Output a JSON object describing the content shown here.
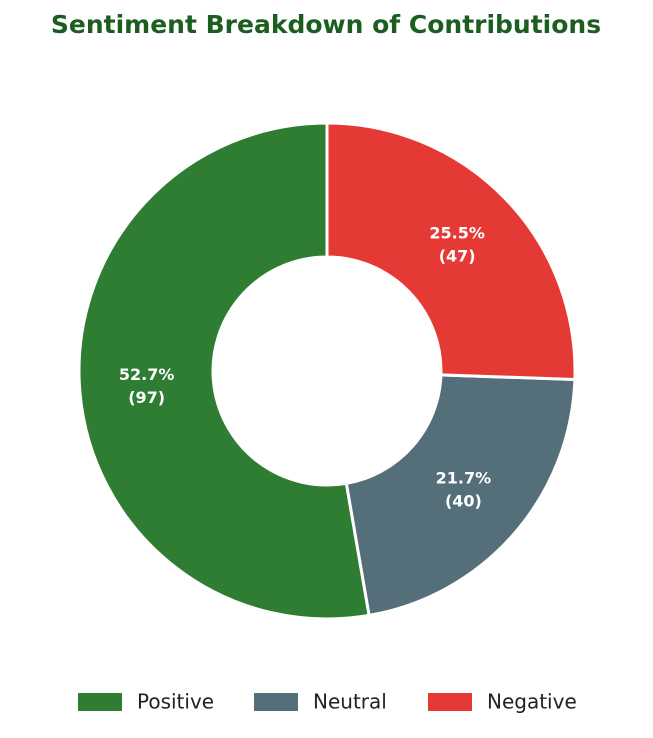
{
  "chart_data": {
    "type": "donut",
    "title": "Sentiment Breakdown of Contributions",
    "categories": [
      "Positive",
      "Neutral",
      "Negative"
    ],
    "values": [
      97,
      40,
      47
    ],
    "value_labels": [
      "(97)",
      "(40)",
      "(47)"
    ],
    "percents": [
      52.7,
      21.7,
      25.5
    ],
    "percent_labels": [
      "52.7%",
      "21.7%",
      "25.5%"
    ],
    "colors": [
      "#2e7d32",
      "#546e7a",
      "#e53935"
    ],
    "legend": "bottom"
  }
}
